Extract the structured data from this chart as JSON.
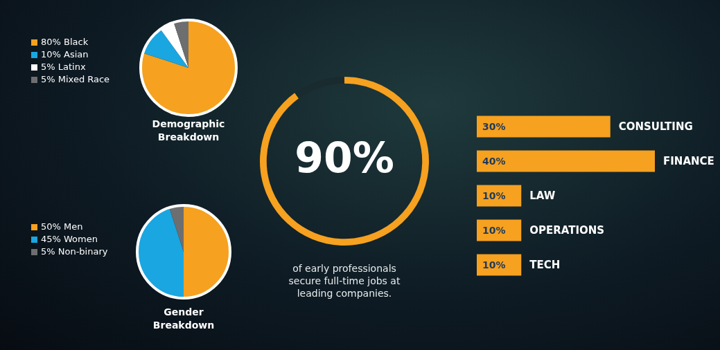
{
  "chart_data": [
    {
      "type": "pie",
      "title": "Demographic Breakdown",
      "categories": [
        "Black",
        "Asian",
        "Latinx",
        "Mixed Race"
      ],
      "values": [
        80,
        10,
        5,
        5
      ],
      "value_labels": [
        "80%",
        "10%",
        "5%",
        "5%"
      ],
      "colors": [
        "#f6a11f",
        "#1aa6e0",
        "#ffffff",
        "#6d6e70"
      ],
      "legend": "left"
    },
    {
      "type": "pie",
      "title": "Gender Breakdown",
      "categories": [
        "Men",
        "Women",
        "Non-binary"
      ],
      "values": [
        50,
        45,
        5
      ],
      "value_labels": [
        "50%",
        "45%",
        "5%"
      ],
      "colors": [
        "#f6a11f",
        "#1aa6e0",
        "#6d6e70"
      ],
      "legend": "left"
    },
    {
      "type": "donut",
      "categories": [
        null,
        null
      ],
      "values": [
        90,
        10
      ],
      "value_labels": [
        "90%",
        null
      ],
      "colors": [
        "#f6a11f",
        "#1a2b2f"
      ],
      "annotations": [
        "of early professionals secure full-time jobs at leading companies."
      ]
    },
    {
      "type": "bar",
      "orientation": "horizontal",
      "categories": [
        "CONSULTING",
        "FINANCE",
        "LAW",
        "OPERATIONS",
        "TECH"
      ],
      "values": [
        30,
        40,
        10,
        10,
        10
      ],
      "value_labels": [
        "30%",
        "40%",
        "10%",
        "10%",
        "10%"
      ],
      "color": "#f6a11f",
      "xlim": [
        0,
        40
      ],
      "tick_labels": false
    }
  ]
}
